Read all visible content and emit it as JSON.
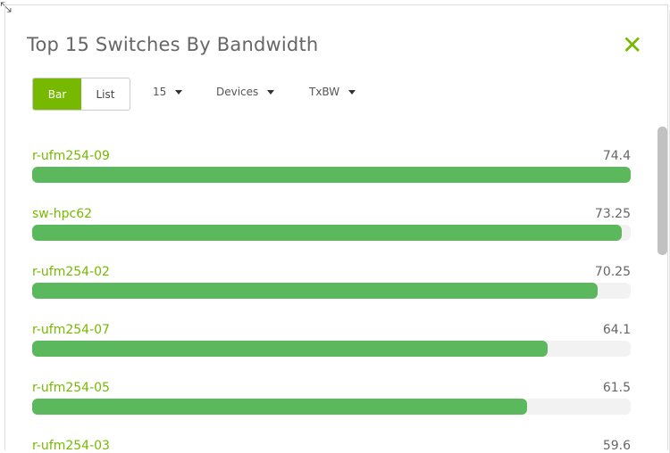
{
  "title": "Top 15 Switches By Bandwidth",
  "view_toggle": {
    "bar": "Bar",
    "list": "List",
    "active": "Bar"
  },
  "filters": {
    "count": "15",
    "type": "Devices",
    "metric": "TxBW"
  },
  "accent": "#76b900",
  "bar_color": "#5cb85c",
  "max_value": 74.4,
  "items": [
    {
      "name": "r-ufm254-09",
      "value": 74.4
    },
    {
      "name": "sw-hpc62",
      "value": 73.25
    },
    {
      "name": "r-ufm254-02",
      "value": 70.25
    },
    {
      "name": "r-ufm254-07",
      "value": 64.1
    },
    {
      "name": "r-ufm254-05",
      "value": 61.5
    },
    {
      "name": "r-ufm254-03",
      "value": 59.6
    }
  ]
}
